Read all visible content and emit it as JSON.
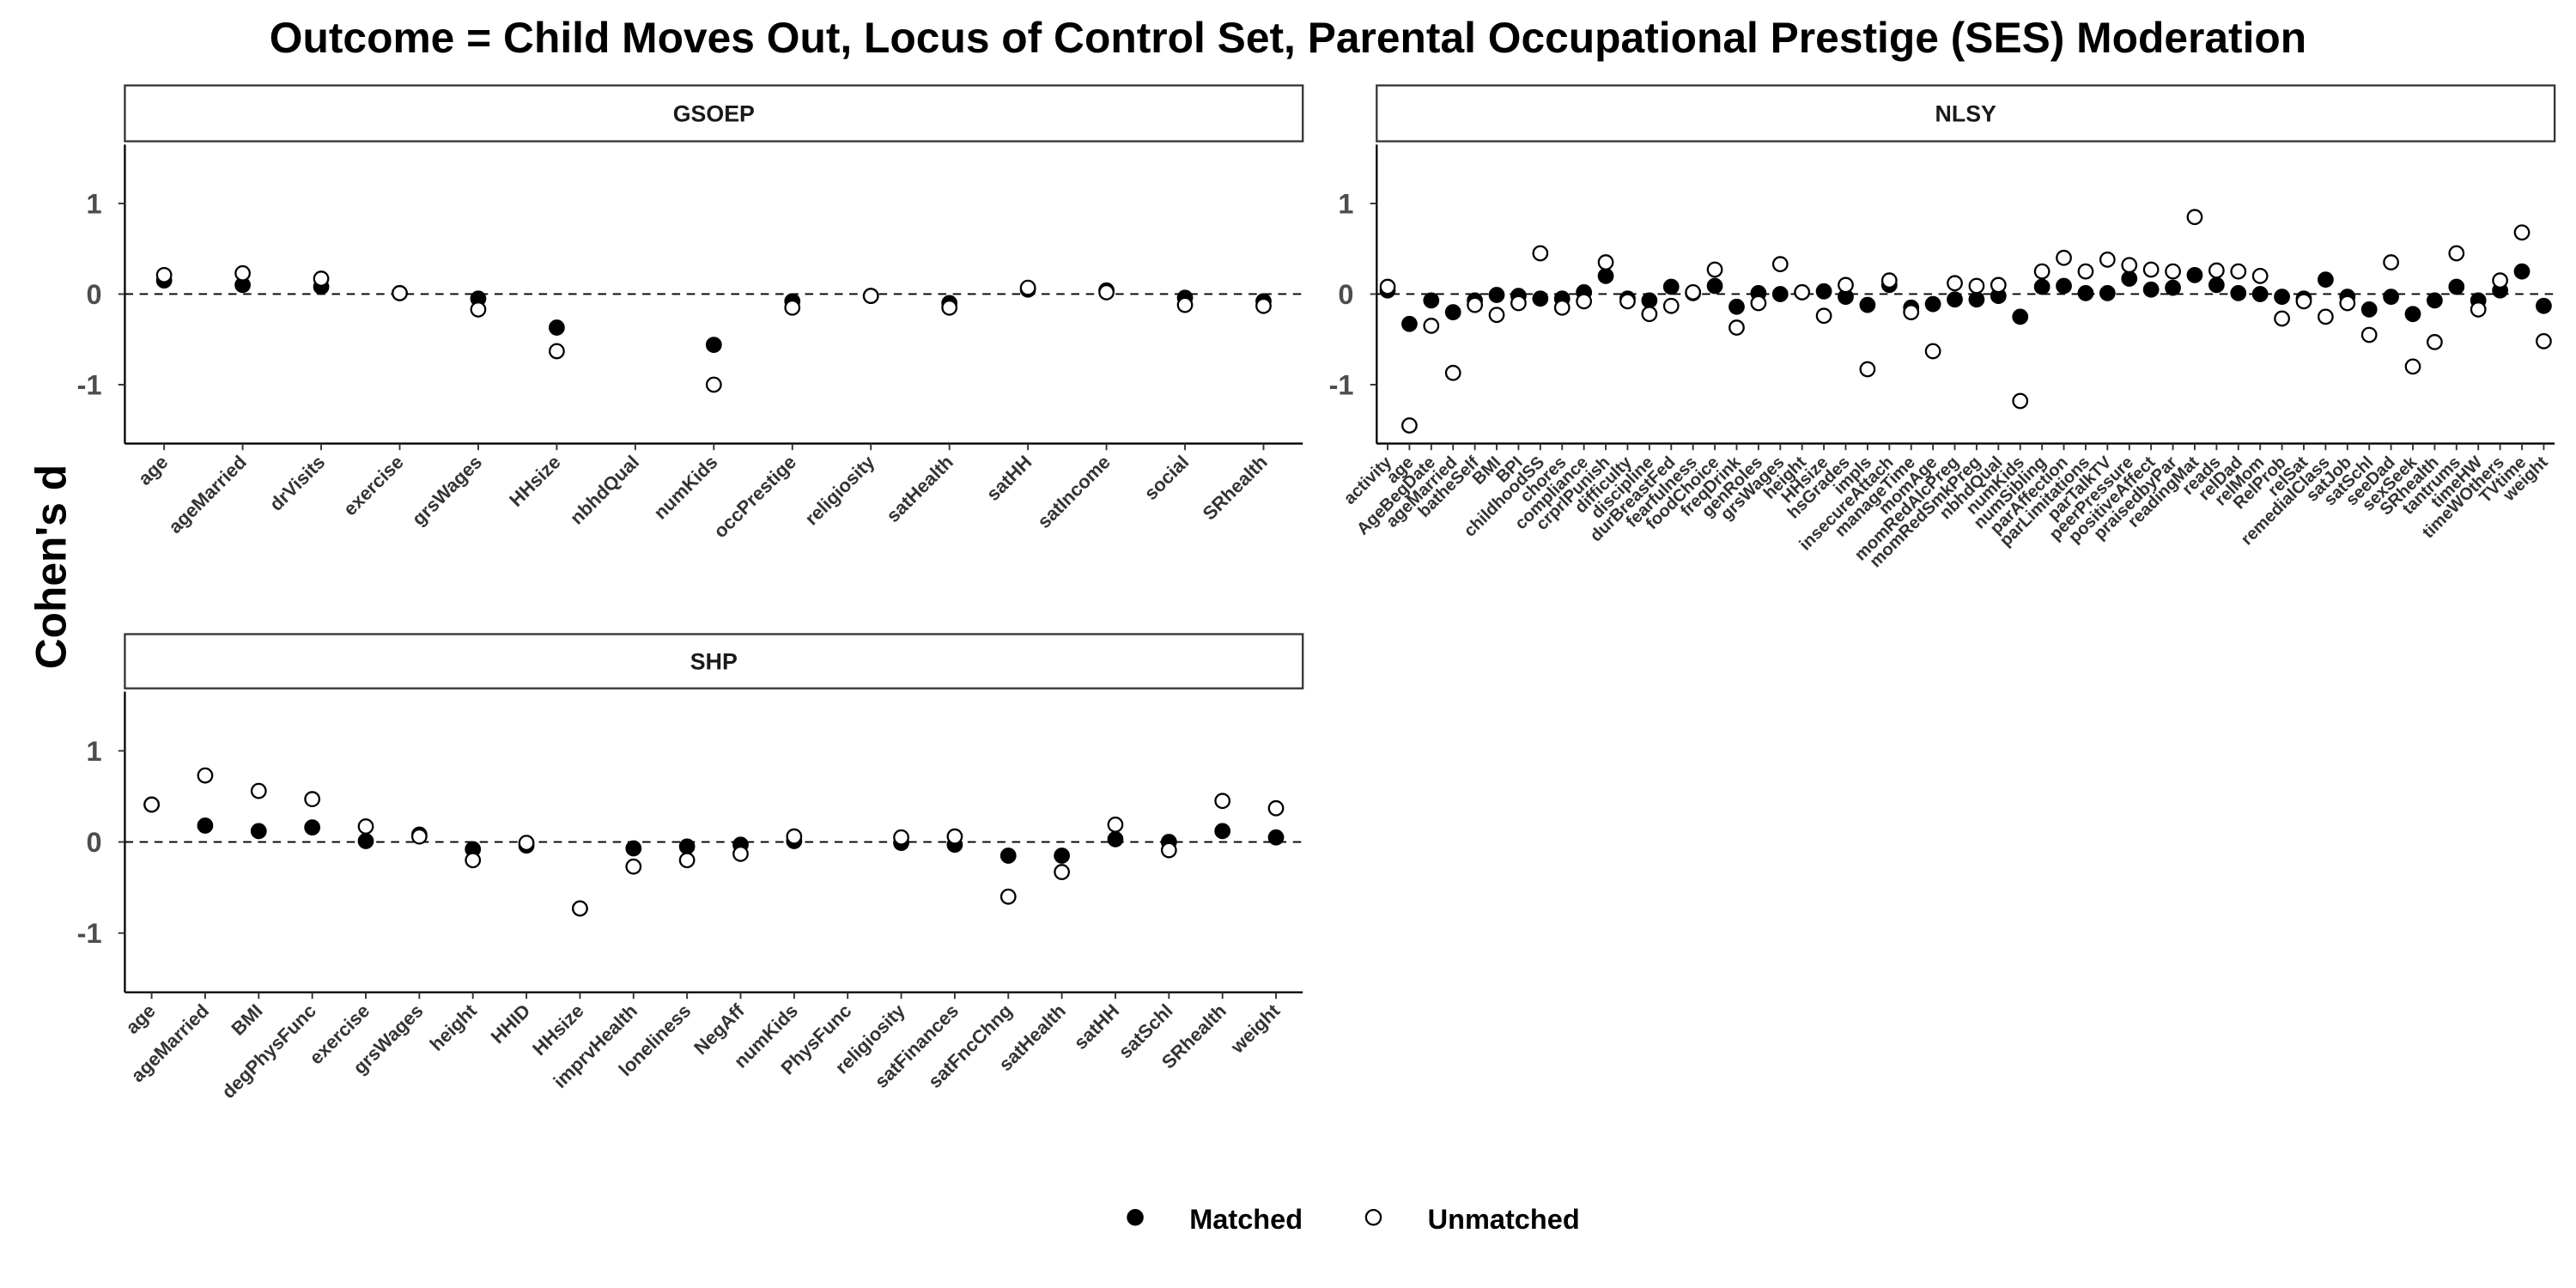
{
  "title": "Outcome = Child Moves Out, Locus of Control Set, Parental Occupational Prestige (SES) Moderation",
  "y_axis_label": "Cohen's d",
  "chart_data": [
    {
      "type": "scatter",
      "title": "GSOEP",
      "categories": [
        "age",
        "ageMarried",
        "drVisits",
        "exercise",
        "grsWages",
        "HHsize",
        "nbhdQual",
        "numKids",
        "occPrestige",
        "religiosity",
        "satHealth",
        "satHH",
        "satIncome",
        "social",
        "SRhealth"
      ],
      "series": [
        {
          "name": "Matched",
          "color": "#000000",
          "fill": "filled",
          "values": [
            0.15,
            0.1,
            0.08,
            0.01,
            -0.05,
            -0.37,
            null,
            -0.56,
            -0.08,
            -0.02,
            -0.1,
            0.05,
            0.04,
            -0.04,
            -0.08
          ]
        },
        {
          "name": "Unmatched",
          "color": "#000000",
          "fill": "hollow",
          "values": [
            0.21,
            0.23,
            0.17,
            0.01,
            -0.17,
            -0.63,
            null,
            -1.0,
            -0.15,
            -0.02,
            -0.15,
            0.07,
            0.02,
            -0.12,
            -0.13
          ]
        }
      ],
      "ylim": [
        -1.65,
        1.65
      ],
      "yticks": [
        -1,
        0,
        1
      ],
      "reference_line": 0
    },
    {
      "type": "scatter",
      "title": "NLSY",
      "categories": [
        "activity",
        "age",
        "AgeBegDate",
        "ageMarried",
        "batheSelf",
        "BMI",
        "BPI",
        "childhoodSS",
        "chores",
        "compliance",
        "crprlPunish",
        "difficulty",
        "discipline",
        "durBreastFed",
        "fearfulness",
        "foodChoice",
        "freqDrink",
        "genRoles",
        "grsWages",
        "height",
        "HHsize",
        "hsGrades",
        "impls",
        "insecureAttach",
        "manageTime",
        "momAge",
        "momRedAlcPreg",
        "momRedSmkPreg",
        "nbhdQual",
        "numKids",
        "numSibling",
        "parAffection",
        "parLimitations",
        "parTalkTV",
        "peerPressure",
        "positiveAffect",
        "praisedbyPar",
        "readingMat",
        "reads",
        "relDad",
        "relMom",
        "RelProb",
        "relSat",
        "remedialClass",
        "satJob",
        "satSchl",
        "seeDad",
        "sexSeek",
        "SRhealth",
        "tantrums",
        "timeHW",
        "timeWOthers",
        "TVtime",
        "weight"
      ],
      "series": [
        {
          "name": "Matched",
          "color": "#000000",
          "fill": "filled",
          "values": [
            0.04,
            -0.33,
            -0.07,
            -0.2,
            -0.07,
            -0.01,
            -0.02,
            -0.05,
            -0.05,
            0.02,
            0.2,
            -0.05,
            -0.07,
            0.08,
            0.01,
            0.09,
            -0.14,
            0.01,
            0.0,
            0.02,
            0.03,
            -0.03,
            -0.12,
            0.1,
            -0.15,
            -0.11,
            -0.06,
            -0.06,
            -0.02,
            -0.25,
            0.08,
            0.09,
            0.01,
            0.01,
            0.17,
            0.05,
            0.07,
            0.21,
            0.1,
            0.01,
            0.0,
            -0.03,
            -0.05,
            0.16,
            -0.03,
            -0.17,
            -0.03,
            -0.22,
            -0.07,
            0.08,
            -0.07,
            0.04,
            0.25,
            -0.13
          ]
        },
        {
          "name": "Unmatched",
          "color": "#000000",
          "fill": "hollow",
          "values": [
            0.08,
            -1.45,
            -0.35,
            -0.87,
            -0.12,
            -0.23,
            -0.1,
            0.45,
            -0.15,
            -0.08,
            0.35,
            -0.08,
            -0.22,
            -0.13,
            0.02,
            0.27,
            -0.37,
            -0.1,
            0.33,
            0.02,
            -0.24,
            0.1,
            -0.83,
            0.15,
            -0.2,
            -0.63,
            0.12,
            0.09,
            0.1,
            -1.18,
            0.25,
            0.4,
            0.25,
            0.38,
            0.32,
            0.27,
            0.25,
            0.85,
            0.26,
            0.25,
            0.2,
            -0.27,
            -0.08,
            -0.25,
            -0.1,
            -0.45,
            0.35,
            -0.8,
            -0.53,
            0.45,
            -0.17,
            0.15,
            0.68,
            -0.52
          ]
        }
      ],
      "ylim": [
        -1.65,
        1.65
      ],
      "yticks": [
        -1,
        0,
        1
      ],
      "reference_line": 0
    },
    {
      "type": "scatter",
      "title": "SHP",
      "categories": [
        "age",
        "ageMarried",
        "BMI",
        "degPhysFunc",
        "exercise",
        "grsWages",
        "height",
        "HHID",
        "HHsize",
        "imprvHealth",
        "loneliness",
        "NegAff",
        "numKids",
        "PhysFunc",
        "religiosity",
        "satFinances",
        "satFncChng",
        "satHealth",
        "satHH",
        "satSchl",
        "SRhealth",
        "weight"
      ],
      "series": [
        {
          "name": "Matched",
          "color": "#000000",
          "fill": "filled",
          "values": [
            0.41,
            0.18,
            0.12,
            0.16,
            0.01,
            0.08,
            -0.08,
            -0.04,
            -0.73,
            -0.07,
            -0.05,
            -0.03,
            0.01,
            null,
            -0.01,
            -0.03,
            -0.15,
            -0.15,
            0.03,
            0.0,
            0.12,
            0.05
          ]
        },
        {
          "name": "Unmatched",
          "color": "#000000",
          "fill": "hollow",
          "values": [
            0.41,
            0.73,
            0.56,
            0.47,
            0.17,
            0.06,
            -0.2,
            -0.01,
            -0.73,
            -0.27,
            -0.2,
            -0.13,
            0.06,
            null,
            0.05,
            0.06,
            -0.6,
            -0.33,
            0.19,
            -0.09,
            0.45,
            0.37
          ]
        }
      ],
      "ylim": [
        -1.65,
        1.65
      ],
      "yticks": [
        -1,
        0,
        1
      ],
      "reference_line": 0
    }
  ]
}
